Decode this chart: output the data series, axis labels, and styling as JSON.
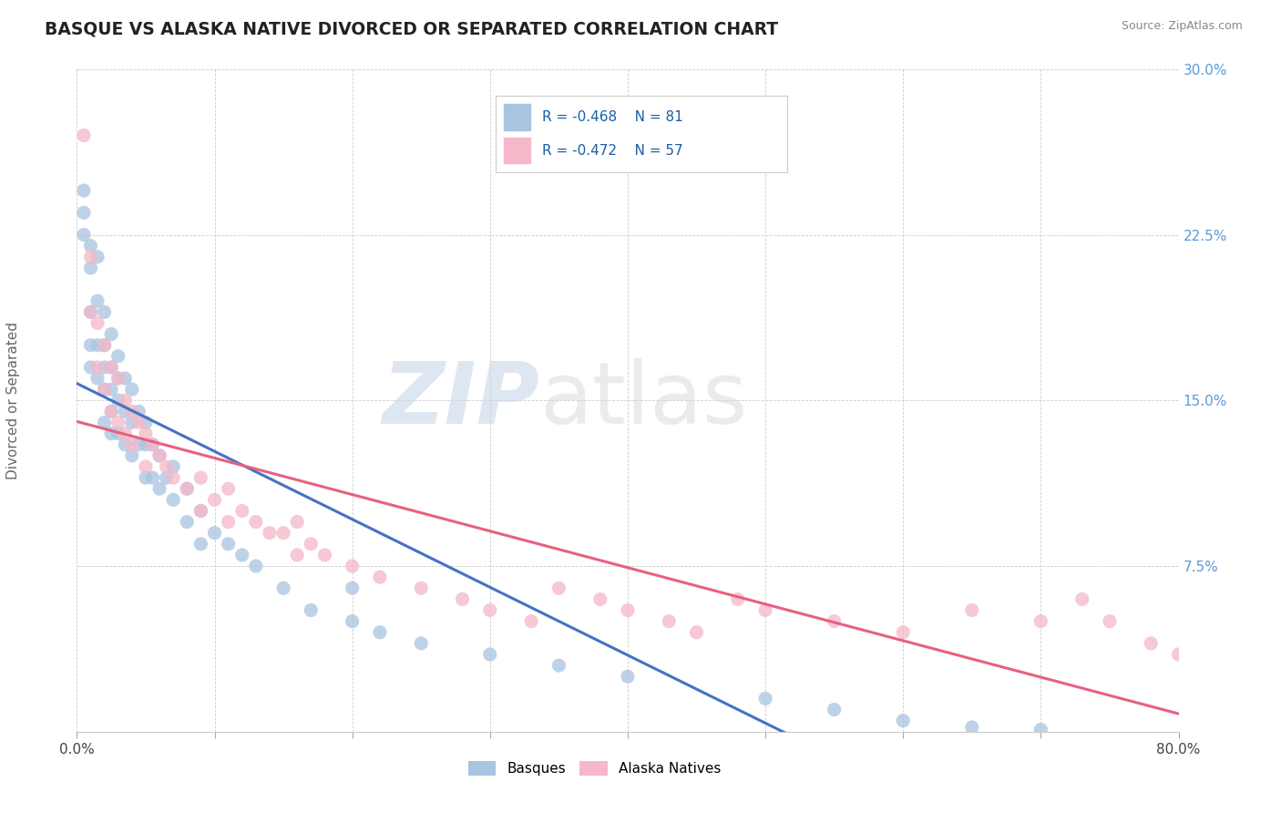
{
  "title": "BASQUE VS ALASKA NATIVE DIVORCED OR SEPARATED CORRELATION CHART",
  "source": "Source: ZipAtlas.com",
  "ylabel": "Divorced or Separated",
  "xlim": [
    0.0,
    0.8
  ],
  "ylim": [
    0.0,
    0.3
  ],
  "yticks": [
    0.0,
    0.075,
    0.15,
    0.225,
    0.3
  ],
  "ytick_labels": [
    "",
    "7.5%",
    "15.0%",
    "22.5%",
    "30.0%"
  ],
  "xtick_locs": [
    0.0,
    0.1,
    0.2,
    0.3,
    0.4,
    0.5,
    0.6,
    0.7,
    0.8
  ],
  "xtick_labels": [
    "0.0%",
    "",
    "",
    "",
    "",
    "",
    "",
    "",
    "80.0%"
  ],
  "basque_color": "#a8c4e0",
  "alaska_color": "#f4b8c8",
  "basque_line_color": "#4472c4",
  "alaska_line_color": "#e86080",
  "watermark": "ZIPatlas",
  "basque_scatter_x": [
    0.005,
    0.005,
    0.005,
    0.01,
    0.01,
    0.01,
    0.01,
    0.01,
    0.015,
    0.015,
    0.015,
    0.015,
    0.02,
    0.02,
    0.02,
    0.02,
    0.02,
    0.025,
    0.025,
    0.025,
    0.025,
    0.025,
    0.03,
    0.03,
    0.03,
    0.03,
    0.035,
    0.035,
    0.035,
    0.04,
    0.04,
    0.04,
    0.045,
    0.045,
    0.05,
    0.05,
    0.05,
    0.055,
    0.055,
    0.06,
    0.06,
    0.065,
    0.07,
    0.07,
    0.08,
    0.08,
    0.09,
    0.09,
    0.1,
    0.11,
    0.12,
    0.13,
    0.15,
    0.17,
    0.2,
    0.2,
    0.22,
    0.25,
    0.3,
    0.35,
    0.4,
    0.5,
    0.55,
    0.6,
    0.65,
    0.7
  ],
  "basque_scatter_y": [
    0.245,
    0.235,
    0.225,
    0.22,
    0.21,
    0.19,
    0.175,
    0.165,
    0.215,
    0.195,
    0.175,
    0.16,
    0.19,
    0.175,
    0.165,
    0.155,
    0.14,
    0.18,
    0.165,
    0.155,
    0.145,
    0.135,
    0.17,
    0.16,
    0.15,
    0.135,
    0.16,
    0.145,
    0.13,
    0.155,
    0.14,
    0.125,
    0.145,
    0.13,
    0.14,
    0.13,
    0.115,
    0.13,
    0.115,
    0.125,
    0.11,
    0.115,
    0.12,
    0.105,
    0.11,
    0.095,
    0.1,
    0.085,
    0.09,
    0.085,
    0.08,
    0.075,
    0.065,
    0.055,
    0.065,
    0.05,
    0.045,
    0.04,
    0.035,
    0.03,
    0.025,
    0.015,
    0.01,
    0.005,
    0.002,
    0.001
  ],
  "alaska_scatter_x": [
    0.005,
    0.01,
    0.01,
    0.015,
    0.015,
    0.02,
    0.02,
    0.025,
    0.025,
    0.03,
    0.03,
    0.035,
    0.035,
    0.04,
    0.04,
    0.045,
    0.05,
    0.05,
    0.055,
    0.06,
    0.065,
    0.07,
    0.08,
    0.09,
    0.09,
    0.1,
    0.11,
    0.11,
    0.12,
    0.13,
    0.14,
    0.15,
    0.16,
    0.16,
    0.17,
    0.18,
    0.2,
    0.22,
    0.25,
    0.28,
    0.3,
    0.33,
    0.35,
    0.38,
    0.4,
    0.43,
    0.45,
    0.48,
    0.5,
    0.55,
    0.6,
    0.65,
    0.7,
    0.73,
    0.75,
    0.78,
    0.8
  ],
  "alaska_scatter_y": [
    0.27,
    0.215,
    0.19,
    0.185,
    0.165,
    0.175,
    0.155,
    0.165,
    0.145,
    0.16,
    0.14,
    0.15,
    0.135,
    0.145,
    0.13,
    0.14,
    0.135,
    0.12,
    0.13,
    0.125,
    0.12,
    0.115,
    0.11,
    0.115,
    0.1,
    0.105,
    0.11,
    0.095,
    0.1,
    0.095,
    0.09,
    0.09,
    0.095,
    0.08,
    0.085,
    0.08,
    0.075,
    0.07,
    0.065,
    0.06,
    0.055,
    0.05,
    0.065,
    0.06,
    0.055,
    0.05,
    0.045,
    0.06,
    0.055,
    0.05,
    0.045,
    0.055,
    0.05,
    0.06,
    0.05,
    0.04,
    0.035
  ],
  "basque_trend": [
    0.17,
    -0.005
  ],
  "alaska_trend": [
    0.14,
    0.025
  ]
}
